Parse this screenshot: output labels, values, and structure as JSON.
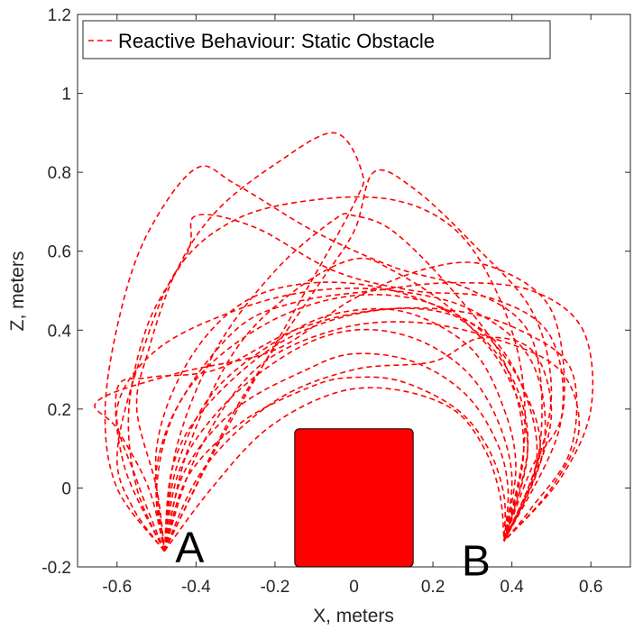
{
  "chart_data": {
    "type": "line",
    "title": "",
    "xlabel": "X, meters",
    "ylabel": "Z, meters",
    "xlim": [
      -0.7,
      0.7
    ],
    "ylim": [
      -0.2,
      1.2
    ],
    "xticks": [
      "-0.6",
      "-0.4",
      "-0.2",
      "0",
      "0.2",
      "0.4",
      "0.6"
    ],
    "yticks": [
      "-0.2",
      "0",
      "0.2",
      "0.4",
      "0.6",
      "0.8",
      "1",
      "1.2"
    ],
    "grid": false,
    "legend": {
      "placement": "top-left",
      "entries": [
        "Reactive Behaviour: Static Obstacle"
      ]
    },
    "line_color": "#ff0000",
    "line_style": "dashed",
    "start_label": "A",
    "end_label": "B",
    "start_point": [
      -0.48,
      -0.16
    ],
    "end_point": [
      0.38,
      -0.135
    ],
    "obstacle": {
      "x": [
        -0.15,
        0.15
      ],
      "z": [
        -0.2,
        0.15
      ],
      "color": "#ff0000"
    },
    "series": [
      {
        "points": [
          [
            -0.48,
            -0.16
          ],
          [
            -0.56,
            -0.05
          ],
          [
            -0.6,
            0.08
          ],
          [
            -0.55,
            0.3
          ],
          [
            -0.45,
            0.55
          ],
          [
            -0.3,
            0.68
          ],
          [
            -0.1,
            0.73
          ],
          [
            0.1,
            0.73
          ],
          [
            0.25,
            0.66
          ],
          [
            0.35,
            0.52
          ],
          [
            0.42,
            0.32
          ],
          [
            0.43,
            0.1
          ],
          [
            0.38,
            -0.135
          ]
        ]
      },
      {
        "points": [
          [
            -0.48,
            -0.16
          ],
          [
            -0.6,
            0.0
          ],
          [
            -0.63,
            0.2
          ],
          [
            -0.59,
            0.45
          ],
          [
            -0.52,
            0.65
          ],
          [
            -0.4,
            0.81
          ],
          [
            -0.3,
            0.77
          ],
          [
            -0.1,
            0.65
          ],
          [
            0.1,
            0.56
          ],
          [
            0.3,
            0.5
          ],
          [
            0.45,
            0.38
          ],
          [
            0.47,
            0.1
          ],
          [
            0.38,
            -0.135
          ]
        ]
      },
      {
        "points": [
          [
            -0.48,
            -0.16
          ],
          [
            -0.55,
            0.0
          ],
          [
            -0.57,
            0.2
          ],
          [
            -0.52,
            0.42
          ],
          [
            -0.42,
            0.6
          ],
          [
            -0.4,
            0.69
          ],
          [
            -0.25,
            0.66
          ],
          [
            -0.05,
            0.55
          ],
          [
            0.15,
            0.5
          ],
          [
            0.35,
            0.48
          ],
          [
            0.5,
            0.38
          ],
          [
            0.52,
            0.15
          ],
          [
            0.38,
            -0.135
          ]
        ]
      },
      {
        "points": [
          [
            -0.48,
            -0.16
          ],
          [
            -0.45,
            0.1
          ],
          [
            -0.35,
            0.35
          ],
          [
            -0.2,
            0.55
          ],
          [
            -0.05,
            0.68
          ],
          [
            0.0,
            0.69
          ],
          [
            0.1,
            0.65
          ],
          [
            0.25,
            0.5
          ],
          [
            0.38,
            0.32
          ],
          [
            0.43,
            0.1
          ],
          [
            0.38,
            -0.135
          ]
        ]
      },
      {
        "points": [
          [
            -0.48,
            -0.16
          ],
          [
            -0.42,
            0.1
          ],
          [
            -0.3,
            0.35
          ],
          [
            -0.15,
            0.5
          ],
          [
            0.0,
            0.58
          ],
          [
            0.1,
            0.55
          ],
          [
            0.25,
            0.45
          ],
          [
            0.38,
            0.3
          ],
          [
            0.44,
            0.1
          ],
          [
            0.38,
            -0.135
          ]
        ]
      },
      {
        "points": [
          [
            -0.48,
            -0.16
          ],
          [
            -0.3,
            0.2
          ],
          [
            -0.1,
            0.5
          ],
          [
            0.0,
            0.65
          ],
          [
            0.05,
            0.8
          ],
          [
            0.15,
            0.76
          ],
          [
            0.3,
            0.62
          ],
          [
            0.45,
            0.45
          ],
          [
            0.5,
            0.25
          ],
          [
            0.46,
            0.05
          ],
          [
            0.38,
            -0.135
          ]
        ]
      },
      {
        "points": [
          [
            -0.48,
            -0.16
          ],
          [
            -0.35,
            0.1
          ],
          [
            -0.15,
            0.45
          ],
          [
            0.0,
            0.72
          ],
          [
            0.02,
            0.8
          ],
          [
            -0.05,
            0.9
          ],
          [
            -0.2,
            0.82
          ],
          [
            -0.35,
            0.7
          ],
          [
            -0.45,
            0.55
          ],
          [
            -0.52,
            0.35
          ],
          [
            -0.55,
            0.2
          ],
          [
            -0.5,
            0.0
          ],
          [
            -0.48,
            -0.16
          ]
        ]
      },
      {
        "points": [
          [
            -0.48,
            -0.16
          ],
          [
            -0.52,
            0.0
          ],
          [
            -0.6,
            0.15
          ],
          [
            -0.65,
            0.22
          ],
          [
            -0.45,
            0.29
          ],
          [
            -0.2,
            0.35
          ],
          [
            0.0,
            0.48
          ],
          [
            0.2,
            0.56
          ],
          [
            0.35,
            0.56
          ],
          [
            0.5,
            0.45
          ],
          [
            0.53,
            0.2
          ],
          [
            0.45,
            0.05
          ],
          [
            0.38,
            -0.135
          ]
        ]
      },
      {
        "points": [
          [
            -0.48,
            -0.16
          ],
          [
            -0.55,
            0.02
          ],
          [
            -0.6,
            0.2
          ],
          [
            -0.5,
            0.35
          ],
          [
            -0.3,
            0.45
          ],
          [
            -0.1,
            0.5
          ],
          [
            0.1,
            0.5
          ],
          [
            0.3,
            0.45
          ],
          [
            0.45,
            0.32
          ],
          [
            0.48,
            0.1
          ],
          [
            0.38,
            -0.135
          ]
        ]
      },
      {
        "points": [
          [
            -0.48,
            -0.16
          ],
          [
            -0.45,
            0.05
          ],
          [
            -0.35,
            0.25
          ],
          [
            -0.15,
            0.4
          ],
          [
            0.0,
            0.45
          ],
          [
            0.15,
            0.44
          ],
          [
            0.3,
            0.35
          ],
          [
            0.38,
            0.2
          ],
          [
            0.41,
            0.05
          ],
          [
            0.38,
            -0.135
          ]
        ]
      },
      {
        "points": [
          [
            -0.48,
            -0.16
          ],
          [
            -0.44,
            0.05
          ],
          [
            -0.32,
            0.22
          ],
          [
            -0.15,
            0.35
          ],
          [
            0.0,
            0.4
          ],
          [
            0.15,
            0.38
          ],
          [
            0.28,
            0.3
          ],
          [
            0.36,
            0.18
          ],
          [
            0.4,
            0.03
          ],
          [
            0.38,
            -0.135
          ]
        ]
      },
      {
        "points": [
          [
            -0.48,
            -0.16
          ],
          [
            -0.43,
            0.04
          ],
          [
            -0.3,
            0.2
          ],
          [
            -0.12,
            0.3
          ],
          [
            0.0,
            0.34
          ],
          [
            0.15,
            0.32
          ],
          [
            0.28,
            0.24
          ],
          [
            0.36,
            0.12
          ],
          [
            0.39,
            0.0
          ],
          [
            0.38,
            -0.135
          ]
        ]
      },
      {
        "points": [
          [
            -0.48,
            -0.16
          ],
          [
            -0.42,
            0.03
          ],
          [
            -0.28,
            0.17
          ],
          [
            -0.1,
            0.26
          ],
          [
            0.0,
            0.28
          ],
          [
            0.12,
            0.27
          ],
          [
            0.26,
            0.2
          ],
          [
            0.34,
            0.1
          ],
          [
            0.38,
            -0.02
          ],
          [
            0.38,
            -0.135
          ]
        ]
      },
      {
        "points": [
          [
            -0.48,
            -0.16
          ],
          [
            -0.46,
            0.05
          ],
          [
            -0.38,
            0.2
          ],
          [
            -0.2,
            0.36
          ],
          [
            0.0,
            0.44
          ],
          [
            0.2,
            0.45
          ],
          [
            0.35,
            0.38
          ],
          [
            0.44,
            0.22
          ],
          [
            0.46,
            0.05
          ],
          [
            0.38,
            -0.135
          ]
        ]
      },
      {
        "points": [
          [
            -0.48,
            -0.16
          ],
          [
            -0.5,
            0.05
          ],
          [
            -0.42,
            0.25
          ],
          [
            -0.25,
            0.4
          ],
          [
            -0.05,
            0.48
          ],
          [
            0.15,
            0.48
          ],
          [
            0.32,
            0.4
          ],
          [
            0.43,
            0.25
          ],
          [
            0.47,
            0.08
          ],
          [
            0.38,
            -0.135
          ]
        ]
      },
      {
        "points": [
          [
            -0.48,
            -0.16
          ],
          [
            -0.58,
            0.05
          ],
          [
            -0.6,
            0.25
          ],
          [
            -0.52,
            0.28
          ],
          [
            -0.35,
            0.3
          ],
          [
            -0.15,
            0.4
          ],
          [
            0.05,
            0.45
          ],
          [
            0.25,
            0.45
          ],
          [
            0.42,
            0.4
          ],
          [
            0.55,
            0.3
          ],
          [
            0.55,
            0.1
          ],
          [
            0.45,
            -0.05
          ],
          [
            0.38,
            -0.135
          ]
        ]
      },
      {
        "points": [
          [
            -0.48,
            -0.16
          ],
          [
            -0.38,
            0.05
          ],
          [
            -0.2,
            0.22
          ],
          [
            0.0,
            0.3
          ],
          [
            0.2,
            0.32
          ],
          [
            0.32,
            0.38
          ],
          [
            0.45,
            0.35
          ],
          [
            0.5,
            0.2
          ],
          [
            0.46,
            0.03
          ],
          [
            0.38,
            -0.135
          ]
        ]
      },
      {
        "points": [
          [
            -0.48,
            -0.16
          ],
          [
            -0.4,
            0.08
          ],
          [
            -0.25,
            0.3
          ],
          [
            -0.05,
            0.4
          ],
          [
            0.15,
            0.42
          ],
          [
            0.35,
            0.38
          ],
          [
            0.52,
            0.3
          ],
          [
            0.57,
            0.15
          ],
          [
            0.5,
            0.0
          ],
          [
            0.38,
            -0.135
          ]
        ]
      },
      {
        "points": [
          [
            -0.48,
            -0.16
          ],
          [
            -0.5,
            0.0
          ],
          [
            -0.45,
            0.2
          ],
          [
            -0.3,
            0.4
          ],
          [
            -0.15,
            0.47
          ],
          [
            0.05,
            0.5
          ],
          [
            0.25,
            0.52
          ],
          [
            0.45,
            0.5
          ],
          [
            0.58,
            0.4
          ],
          [
            0.6,
            0.2
          ],
          [
            0.52,
            0.02
          ],
          [
            0.38,
            -0.135
          ]
        ]
      },
      {
        "points": [
          [
            -0.48,
            -0.16
          ],
          [
            -0.36,
            0.0
          ],
          [
            -0.22,
            0.15
          ],
          [
            -0.05,
            0.24
          ],
          [
            0.1,
            0.25
          ],
          [
            0.25,
            0.2
          ],
          [
            0.33,
            0.1
          ],
          [
            0.37,
            -0.02
          ],
          [
            0.38,
            -0.135
          ]
        ]
      },
      {
        "points": [
          [
            -0.48,
            -0.16
          ],
          [
            -0.5,
            0.1
          ],
          [
            -0.42,
            0.32
          ],
          [
            -0.28,
            0.47
          ],
          [
            -0.1,
            0.52
          ],
          [
            0.1,
            0.5
          ],
          [
            0.28,
            0.42
          ],
          [
            0.4,
            0.28
          ],
          [
            0.44,
            0.1
          ],
          [
            0.38,
            -0.135
          ]
        ]
      }
    ]
  }
}
